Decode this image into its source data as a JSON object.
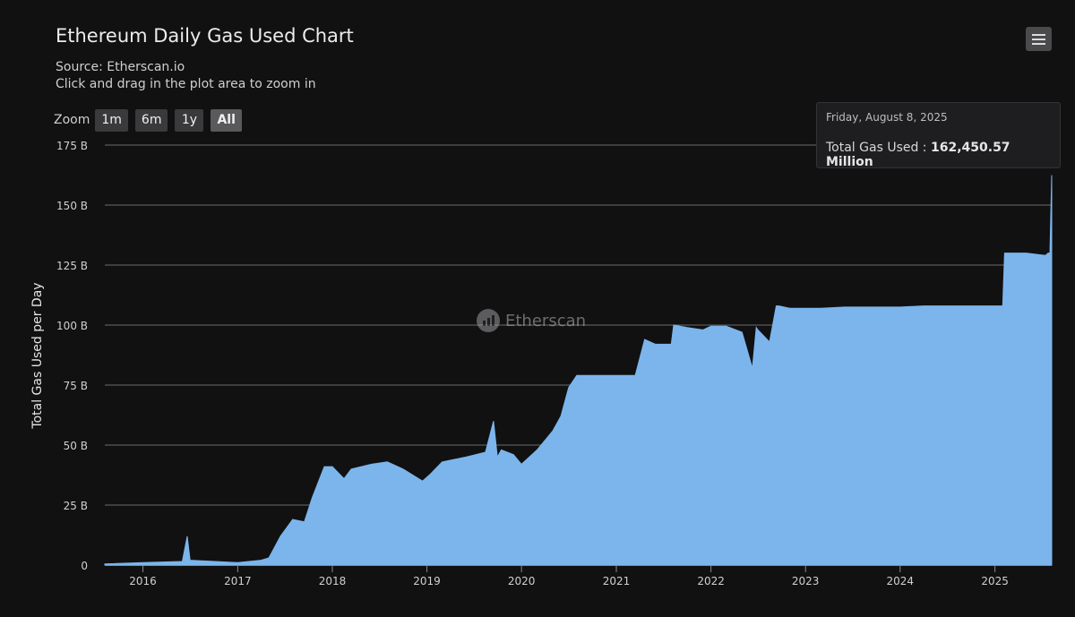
{
  "header": {
    "title": "Ethereum Daily Gas Used Chart",
    "subtitle_source": "Source: Etherscan.io",
    "subtitle_hint": "Click and drag in the plot area to zoom in"
  },
  "zoom": {
    "label": "Zoom",
    "buttons": [
      "1m",
      "6m",
      "1y",
      "All"
    ],
    "active": "All"
  },
  "menu_icon": "hamburger-menu-icon",
  "watermark": {
    "text": "Etherscan"
  },
  "tooltip": {
    "date": "Friday, August 8, 2025",
    "series_label": "Total Gas Used : ",
    "value_text": "162,450.57 Million"
  },
  "colors": {
    "background": "#111112",
    "area_fill": "#7cb5ec",
    "gridline": "#6b6b6d"
  },
  "chart_data": {
    "type": "area",
    "title": "Ethereum Daily Gas Used Chart",
    "ylabel": "Total Gas Used per Day",
    "y_unit": "B",
    "ylim": [
      0,
      175
    ],
    "y_ticks": [
      0,
      25,
      50,
      75,
      100,
      125,
      150,
      175
    ],
    "y_tick_labels": [
      "0",
      "25 B",
      "50 B",
      "75 B",
      "100 B",
      "125 B",
      "150 B",
      "175 B"
    ],
    "x_ticks": [
      "2016",
      "2017",
      "2018",
      "2019",
      "2020",
      "2021",
      "2022",
      "2023",
      "2024",
      "2025"
    ],
    "xlim": [
      "2015-08-07",
      "2025-08-08"
    ],
    "grid": true,
    "legend": "none",
    "series": [
      {
        "x": [
          "2015-08-07",
          "2016-01-01",
          "2016-06-01",
          "2016-06-20",
          "2016-07-01",
          "2017-01-01",
          "2017-04-01",
          "2017-05-01",
          "2017-06-15",
          "2017-08-01",
          "2017-09-15",
          "2017-10-15",
          "2017-12-01",
          "2018-01-01",
          "2018-02-15",
          "2018-03-15",
          "2018-06-01",
          "2018-08-01",
          "2018-10-01",
          "2018-12-15",
          "2019-01-15",
          "2019-03-01",
          "2019-06-01",
          "2019-08-15",
          "2019-09-15",
          "2019-09-30",
          "2019-10-15",
          "2019-12-01",
          "2020-01-01",
          "2020-03-01",
          "2020-05-01",
          "2020-06-01",
          "2020-07-01",
          "2020-08-01",
          "2020-10-01",
          "2021-01-01",
          "2021-03-15",
          "2021-04-20",
          "2021-06-01",
          "2021-08-01",
          "2021-08-10",
          "2021-10-01",
          "2021-12-01",
          "2022-01-01",
          "2022-03-01",
          "2022-05-01",
          "2022-06-10",
          "2022-06-25",
          "2022-07-01",
          "2022-08-15",
          "2022-09-10",
          "2022-09-20",
          "2022-11-01",
          "2023-03-01",
          "2023-06-01",
          "2024-01-01",
          "2024-04-01",
          "2024-12-01",
          "2025-01-31",
          "2025-02-07",
          "2025-05-01",
          "2025-07-15",
          "2025-07-25",
          "2025-08-01",
          "2025-08-08"
        ],
        "values": [
          0.5,
          1,
          1.5,
          12,
          2,
          1,
          2,
          3,
          12,
          19,
          18,
          28,
          41,
          41,
          36,
          40,
          42,
          43,
          40,
          35,
          38,
          43,
          45,
          47,
          60,
          45,
          48,
          46,
          42,
          48,
          56,
          62,
          74,
          79,
          79,
          79,
          79,
          94,
          92,
          92,
          100,
          99,
          98,
          99.5,
          99.5,
          97,
          82,
          99,
          98,
          93,
          108,
          108,
          107,
          107,
          107.5,
          107.5,
          108,
          108,
          108,
          130,
          130,
          129,
          130,
          130,
          162.45
        ]
      }
    ]
  }
}
